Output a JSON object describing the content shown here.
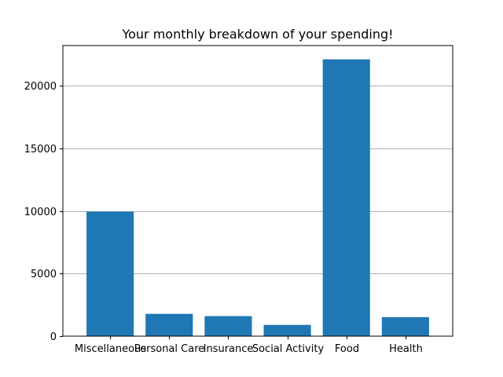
{
  "chart_data": {
    "type": "bar",
    "title": "Your monthly breakdown of your spending!",
    "xlabel": "",
    "ylabel": "",
    "categories": [
      "Miscellaneous",
      "Personal Care",
      "Insurance",
      "Social Activity",
      "Food",
      "Health"
    ],
    "values": [
      9950,
      1780,
      1600,
      900,
      22100,
      1520
    ],
    "ylim": [
      0,
      23200
    ],
    "yticks": [
      0,
      5000,
      10000,
      15000,
      20000
    ],
    "grid": "y-major",
    "bar_color": "#1f77b4",
    "legend": "none"
  }
}
